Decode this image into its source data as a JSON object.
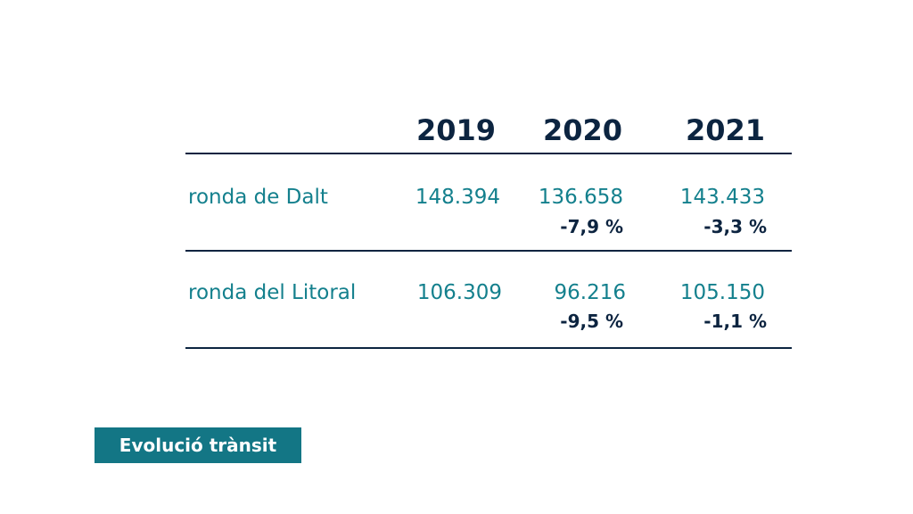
{
  "table": {
    "years": [
      "2019",
      "2020",
      "2021"
    ],
    "rows": [
      {
        "label": "ronda de Dalt",
        "values": [
          "148.394",
          "136.658",
          "143.433"
        ],
        "changes": [
          "",
          "-7,9 %",
          "-3,3 %"
        ]
      },
      {
        "label": "ronda del Litoral",
        "values": [
          "106.309",
          "96.216",
          "105.150"
        ],
        "changes": [
          "",
          "-9,5 %",
          "-1,1 %"
        ]
      }
    ]
  },
  "badge": {
    "label": "Evolució trànsit"
  },
  "colors": {
    "dark_navy": "#0c2440",
    "teal_text": "#14808d",
    "teal_badge": "#137685"
  }
}
